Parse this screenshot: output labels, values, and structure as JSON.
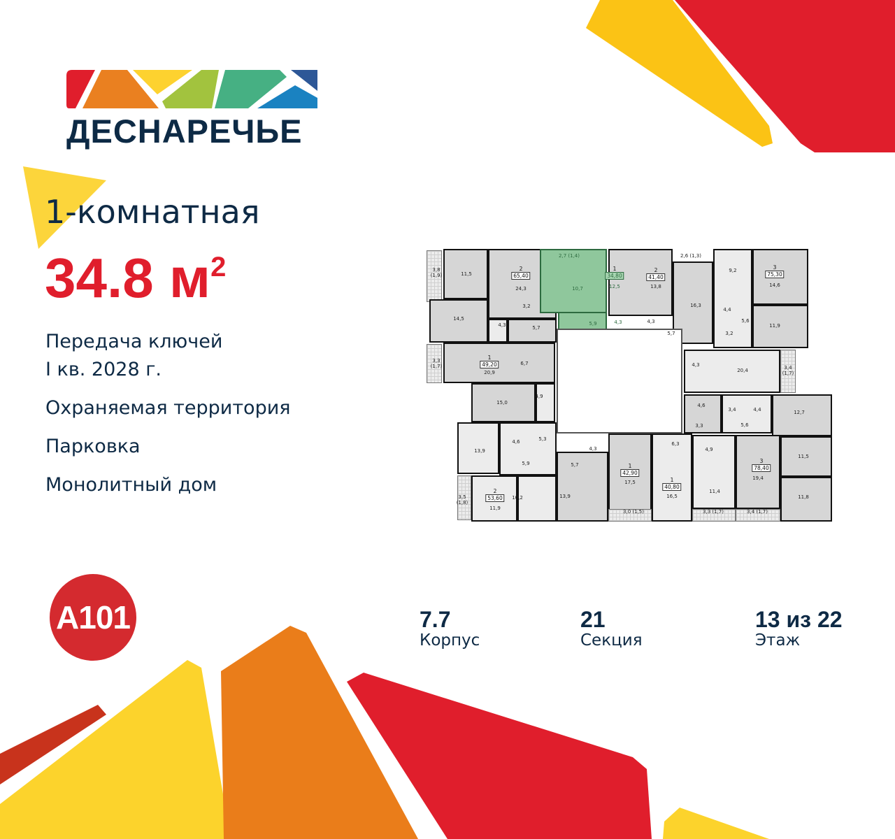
{
  "logo": {
    "name": "ДЕСНАРЕЧЬЕ",
    "colors": [
      "#e01e2c",
      "#ea8020",
      "#fdd22f",
      "#a2c33e",
      "#46b083",
      "#1a82c1",
      "#2d5797"
    ]
  },
  "apartment": {
    "type": "1-комнатная",
    "area": "34.8 м",
    "area_sup": "2"
  },
  "features": [
    "Передача ключей",
    "I кв. 2028 г.",
    "Охраняемая территория",
    "Парковка",
    "Монолитный дом"
  ],
  "developer": {
    "logo": "A101",
    "color": "#d42a2f"
  },
  "stats": [
    {
      "value": "7.7",
      "label": "Корпус"
    },
    {
      "value": "21",
      "label": "Секция"
    },
    {
      "value": "13 из 22",
      "label": "Этаж"
    }
  ],
  "colors": {
    "accent": "#e01e2c",
    "text": "#0e2a45",
    "highlight": "#8fc79c"
  },
  "plan": {
    "apartments": [
      {
        "rooms": "2",
        "area": "65,40"
      },
      {
        "rooms": "1",
        "area": "34,80",
        "highlighted": true
      },
      {
        "rooms": "2",
        "area": "41,40"
      },
      {
        "rooms": "3",
        "area": "75,30"
      },
      {
        "rooms": "1",
        "area": "49,20"
      },
      {
        "rooms": "1",
        "area": "42,90"
      },
      {
        "rooms": "1",
        "area": "40,80"
      },
      {
        "rooms": "3",
        "area": "78,40"
      },
      {
        "rooms": "2",
        "area": "53,60"
      }
    ],
    "labels": [
      "3,8\n(1,9)",
      "11,5",
      "24,3",
      "14,5",
      "4,3",
      "5,7",
      "3,2",
      "2,7 (1,4)",
      "10,7",
      "12,5",
      "5,9",
      "4,3",
      "13,8",
      "4,3",
      "5,7",
      "2,6 (1,3)",
      "16,3",
      "9,2",
      "4,4",
      "3,2",
      "5,6",
      "14,6",
      "11,9",
      "20,9",
      "6,7",
      "3,3\n(1,7)",
      "4,3",
      "20,4",
      "3,4\n(1,7)",
      "15,0",
      "4,9",
      "4,6",
      "3,4",
      "4,4",
      "12,7",
      "3,3",
      "5,6",
      "13,9",
      "4,6",
      "5,3",
      "5,9",
      "4,3",
      "6,3",
      "4,9",
      "11,5",
      "5,7",
      "17,5",
      "16,5",
      "11,4",
      "19,4",
      "11,8",
      "11,9",
      "10,2",
      "13,9",
      "3,5\n(1,8)",
      "3,0 (1,5)",
      "3,3 (1,7)",
      "3,4 (1,7)"
    ]
  }
}
